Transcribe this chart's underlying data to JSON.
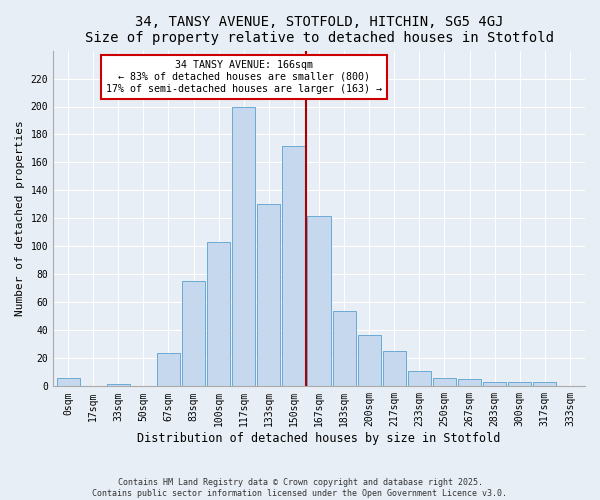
{
  "title": "34, TANSY AVENUE, STOTFOLD, HITCHIN, SG5 4GJ",
  "subtitle": "Size of property relative to detached houses in Stotfold",
  "xlabel": "Distribution of detached houses by size in Stotfold",
  "ylabel": "Number of detached properties",
  "footer": "Contains HM Land Registry data © Crown copyright and database right 2025.\nContains public sector information licensed under the Open Government Licence v3.0.",
  "categories": [
    "0sqm",
    "17sqm",
    "33sqm",
    "50sqm",
    "67sqm",
    "83sqm",
    "100sqm",
    "117sqm",
    "133sqm",
    "150sqm",
    "167sqm",
    "183sqm",
    "200sqm",
    "217sqm",
    "233sqm",
    "250sqm",
    "267sqm",
    "283sqm",
    "300sqm",
    "317sqm",
    "333sqm"
  ],
  "values": [
    6,
    0,
    2,
    0,
    24,
    75,
    103,
    200,
    130,
    172,
    122,
    54,
    37,
    25,
    11,
    6,
    5,
    3,
    3,
    3,
    0
  ],
  "bar_color": "#c5d8ed",
  "bar_edge_color": "#6aaad4",
  "marker_label": "34 TANSY AVENUE: 166sqm",
  "annotation_line1": "← 83% of detached houses are smaller (800)",
  "annotation_line2": "17% of semi-detached houses are larger (163) →",
  "annotation_box_color": "#ffffff",
  "annotation_box_edge": "#cc0000",
  "marker_line_color": "#aa0000",
  "ylim": [
    0,
    240
  ],
  "yticks": [
    0,
    20,
    40,
    60,
    80,
    100,
    120,
    140,
    160,
    180,
    200,
    220
  ],
  "bg_color": "#e8eef5",
  "grid_color": "#ffffff",
  "title_fontsize": 10,
  "axis_label_fontsize": 8,
  "tick_fontsize": 7
}
